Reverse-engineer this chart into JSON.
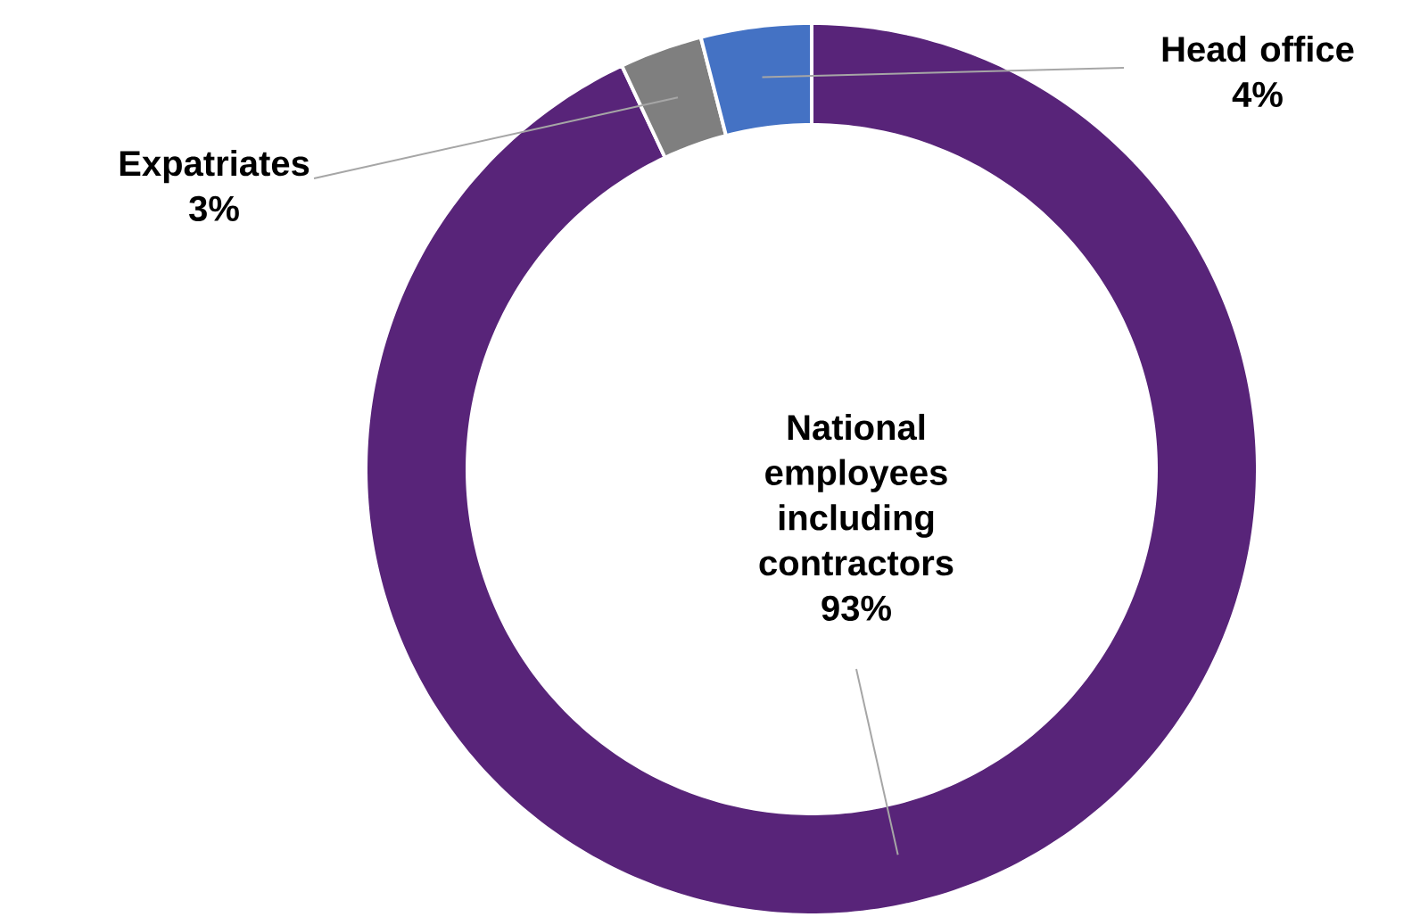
{
  "chart_data": {
    "type": "donut",
    "categories": [
      "National employees including contractors",
      "Expatriates",
      "Head office"
    ],
    "values": [
      93,
      3,
      4
    ],
    "colors": [
      "#582479",
      "#7f7f7f",
      "#4472c4"
    ],
    "value_labels": [
      "93%",
      "3%",
      "4%"
    ]
  }
}
